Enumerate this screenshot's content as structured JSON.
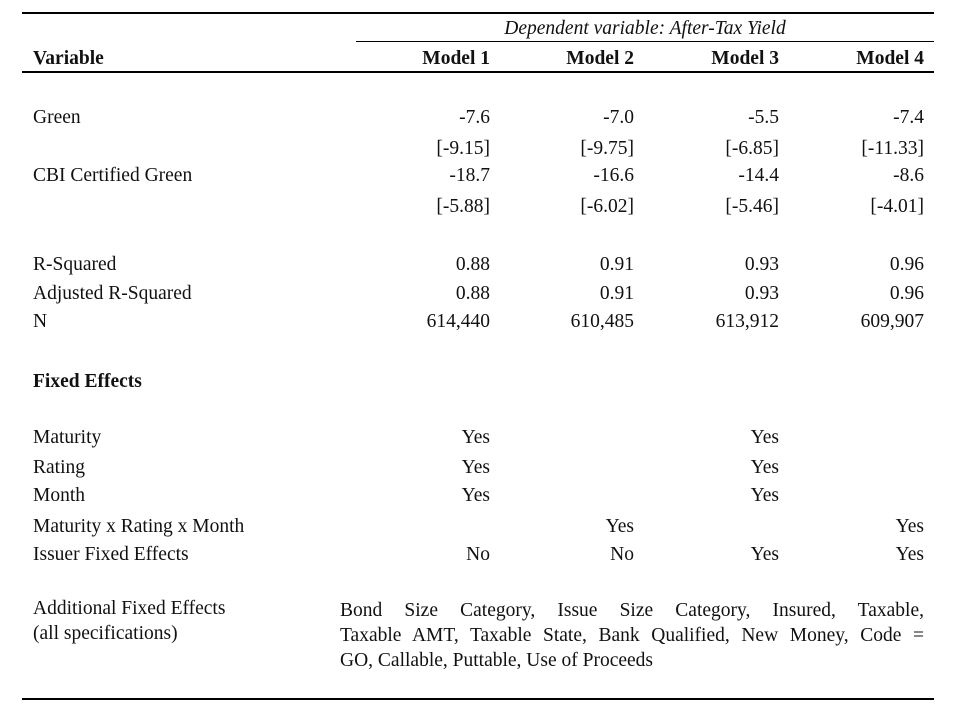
{
  "header": {
    "dependent_variable": "Dependent variable: After-Tax Yield",
    "variable_label": "Variable",
    "models": [
      "Model 1",
      "Model 2",
      "Model 3",
      "Model 4"
    ]
  },
  "coefficients": [
    {
      "label": "Green",
      "values": [
        "-7.6",
        "-7.0",
        "-5.5",
        "-7.4"
      ],
      "tstats": [
        "[-9.15]",
        "[-9.75]",
        "[-6.85]",
        "[-11.33]"
      ]
    },
    {
      "label": "CBI Certified Green",
      "values": [
        "-18.7",
        "-16.6",
        "-14.4",
        "-8.6"
      ],
      "tstats": [
        "[-5.88]",
        "[-6.02]",
        "[-5.46]",
        "[-4.01]"
      ]
    }
  ],
  "stats": [
    {
      "label": "R-Squared",
      "values": [
        "0.88",
        "0.91",
        "0.93",
        "0.96"
      ]
    },
    {
      "label": "Adjusted R-Squared",
      "values": [
        "0.88",
        "0.91",
        "0.93",
        "0.96"
      ]
    },
    {
      "label": "N",
      "values": [
        "614,440",
        "610,485",
        "613,912",
        "609,907"
      ]
    }
  ],
  "fixed_effects": {
    "title": "Fixed Effects",
    "rows": [
      {
        "label": "Maturity",
        "values": [
          "Yes",
          "",
          "Yes",
          ""
        ]
      },
      {
        "label": "Rating",
        "values": [
          "Yes",
          "",
          "Yes",
          ""
        ]
      },
      {
        "label": "Month",
        "values": [
          "Yes",
          "",
          "Yes",
          ""
        ]
      },
      {
        "label": "Maturity x Rating x Month",
        "values": [
          "",
          "Yes",
          "",
          "Yes"
        ]
      },
      {
        "label": "Issuer Fixed Effects",
        "values": [
          "No",
          "No",
          "Yes",
          "Yes"
        ]
      }
    ]
  },
  "additional": {
    "label_line1": "Additional Fixed Effects",
    "label_line2": "(all specifications)",
    "text_lines": [
      "Bond Size Category, Issue Size Category, Insured, Taxable,",
      "Taxable AMT, Taxable State, Bank Qualified, New Money, Code =",
      "GO, Callable, Puttable, Use of Proceeds"
    ]
  }
}
